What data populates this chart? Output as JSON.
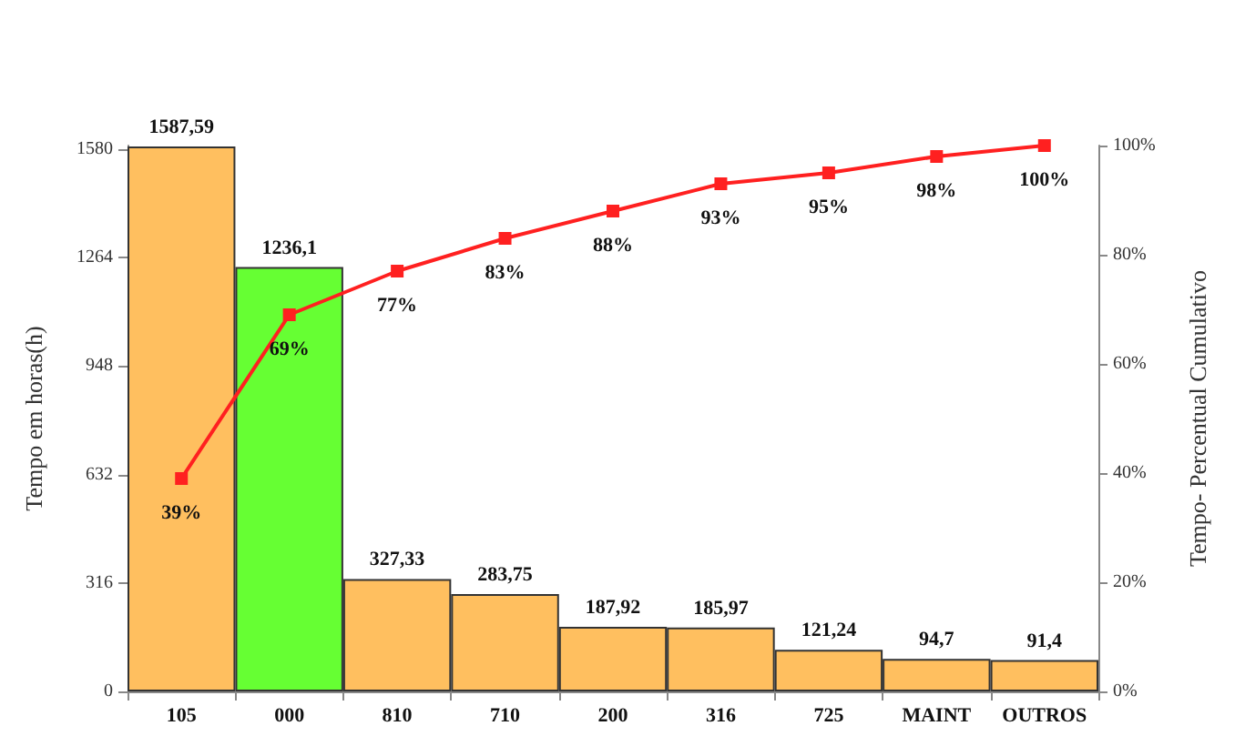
{
  "chart_data": {
    "type": "bar",
    "ylabel": "Tempo em horas(h)",
    "y2label": "Tempo- Percentual Cumulativo",
    "categories": [
      "105",
      "000",
      "810",
      "710",
      "200",
      "316",
      "725",
      "MAINT",
      "OUTROS"
    ],
    "series": [
      {
        "colors": [
          "#ffbf5f",
          "#66ff33",
          "#ffbf5f",
          "#ffbf5f",
          "#ffbf5f",
          "#ffbf5f",
          "#ffbf5f",
          "#ffbf5f",
          "#ffbf5f"
        ],
        "values": [
          1587.59,
          1236.1,
          327.33,
          283.75,
          187.92,
          185.97,
          121.24,
          94.7,
          91.4
        ],
        "value_labels": [
          "1587,59",
          "1236,1",
          "327,33",
          "283,75",
          "187,92",
          "185,97",
          "121,24",
          "94,7",
          "91,4"
        ]
      },
      {
        "type": "line",
        "axis": "y2",
        "color": "#ff2020",
        "marker": "square",
        "values": [
          39,
          69,
          77,
          83,
          88,
          93,
          95,
          98,
          100
        ],
        "value_labels": [
          "39%",
          "69%",
          "77%",
          "83%",
          "88%",
          "93%",
          "95%",
          "98%",
          "100%"
        ]
      }
    ],
    "ylim": [
      0,
      1590
    ],
    "yticks": [
      0,
      316,
      632,
      948,
      1264,
      1580
    ],
    "y2lim": [
      0,
      100
    ],
    "y2ticks": [
      {
        "value": 0,
        "label": "0%"
      },
      {
        "value": 20,
        "label": "20%"
      },
      {
        "value": 40,
        "label": "40%"
      },
      {
        "value": 60,
        "label": "60%"
      },
      {
        "value": 80,
        "label": "80%"
      },
      {
        "value": 100,
        "label": "100%"
      }
    ],
    "grid": false
  }
}
